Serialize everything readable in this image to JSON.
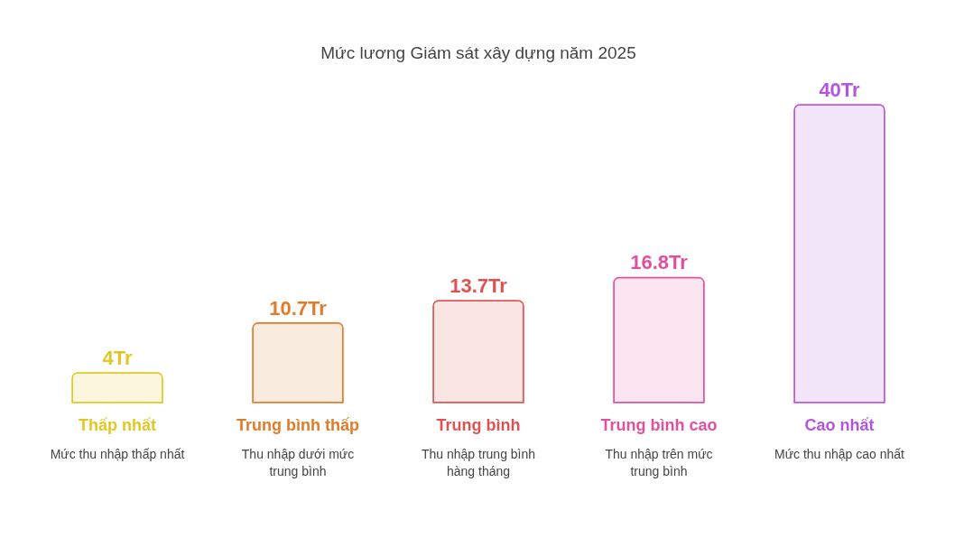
{
  "chart_data": {
    "type": "bar",
    "title": "Mức lương Giám sát xây dựng năm 2025",
    "categories": [
      "Thấp nhất",
      "Trung bình thấp",
      "Trung bình",
      "Trung bình cao",
      "Cao nhất"
    ],
    "values": [
      4,
      10.7,
      13.7,
      16.8,
      40
    ],
    "value_labels": [
      "4Tr",
      "10.7Tr",
      "13.7Tr",
      "16.8Tr",
      "40Tr"
    ],
    "colors": [
      "#e0c820",
      "#e07b2a",
      "#e05252",
      "#e0509f",
      "#b455e0"
    ],
    "annotations": [
      "Mức thu nhập thấp nhất",
      "Thu nhập dưới mức trung bình",
      "Thu nhập trung bình hàng tháng",
      "Thu nhập trên mức trung bình",
      "Mức thu nhập cao nhất"
    ],
    "grid": false,
    "legend": false
  }
}
